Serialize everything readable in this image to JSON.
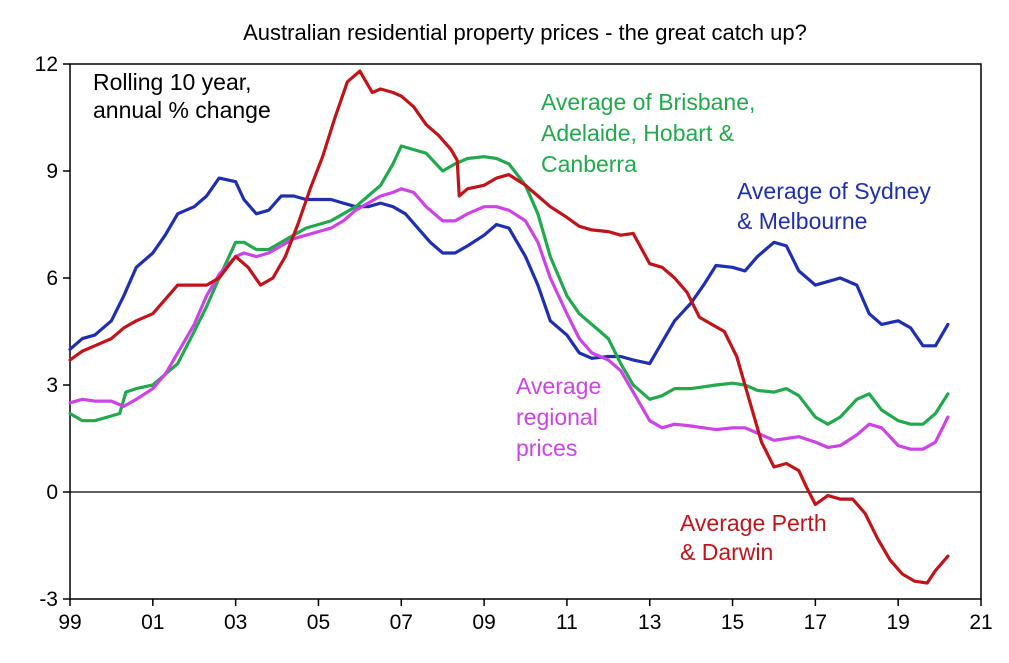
{
  "chart_data": {
    "type": "line",
    "title": "Australian residential property prices - the great catch up?",
    "xlabel": "",
    "ylabel": "",
    "xlim": [
      1999.0,
      2021.0
    ],
    "ylim": [
      -3,
      12
    ],
    "y_ticks": [
      -3,
      0,
      3,
      6,
      9,
      12
    ],
    "x_ticks": [
      {
        "value": 1999,
        "label": "99"
      },
      {
        "value": 2001,
        "label": "01"
      },
      {
        "value": 2003,
        "label": "03"
      },
      {
        "value": 2005,
        "label": "05"
      },
      {
        "value": 2007,
        "label": "07"
      },
      {
        "value": 2009,
        "label": "09"
      },
      {
        "value": 2011,
        "label": "11"
      },
      {
        "value": 2013,
        "label": "13"
      },
      {
        "value": 2015,
        "label": "15"
      },
      {
        "value": 2017,
        "label": "17"
      },
      {
        "value": 2019,
        "label": "19"
      },
      {
        "value": 2021,
        "label": "21"
      }
    ],
    "grid": false,
    "annotations": [
      {
        "lines": [
          "Rolling 10 year,",
          "annual % change"
        ],
        "color": "#000000"
      },
      {
        "lines": [
          "Average of Brisbane,",
          "Adelaide, Hobart &",
          "Canberra"
        ],
        "color": "#22a94d"
      },
      {
        "lines": [
          "Average of Sydney",
          "& Melbourne"
        ],
        "color": "#1f2fb0"
      },
      {
        "lines": [
          "Average",
          "regional",
          "prices"
        ],
        "color": "#cc44e6"
      },
      {
        "lines": [
          "Average Perth",
          "& Darwin"
        ],
        "color": "#c0141a"
      }
    ],
    "series": [
      {
        "color": "#1f2fb0",
        "x": [
          1999.0,
          1999.3,
          1999.6,
          2000.0,
          2000.3,
          2000.6,
          2001.0,
          2001.3,
          2001.6,
          2002.0,
          2002.3,
          2002.6,
          2003.0,
          2003.2,
          2003.5,
          2003.8,
          2004.1,
          2004.4,
          2004.7,
          2005.0,
          2005.3,
          2005.6,
          2005.9,
          2006.2,
          2006.5,
          2006.8,
          2007.1,
          2007.4,
          2007.7,
          2008.0,
          2008.3,
          2008.6,
          2009.0,
          2009.3,
          2009.6,
          2010.0,
          2010.3,
          2010.6,
          2011.0,
          2011.3,
          2011.6,
          2012.0,
          2012.3,
          2012.6,
          2013.0,
          2013.3,
          2013.6,
          2014.0,
          2014.3,
          2014.6,
          2015.0,
          2015.3,
          2015.6,
          2016.0,
          2016.3,
          2016.6,
          2017.0,
          2017.3,
          2017.6,
          2018.0,
          2018.3,
          2018.6,
          2019.0,
          2019.3,
          2019.6,
          2019.9,
          2020.2
        ],
        "y": [
          4.0,
          4.3,
          4.4,
          4.8,
          5.5,
          6.3,
          6.7,
          7.2,
          7.8,
          8.0,
          8.3,
          8.8,
          8.7,
          8.2,
          7.8,
          7.9,
          8.3,
          8.3,
          8.2,
          8.2,
          8.2,
          8.1,
          8.0,
          8.0,
          8.1,
          8.0,
          7.8,
          7.4,
          7.0,
          6.7,
          6.7,
          6.9,
          7.2,
          7.5,
          7.4,
          6.6,
          5.8,
          4.8,
          4.4,
          3.9,
          3.75,
          3.8,
          3.8,
          3.7,
          3.6,
          4.2,
          4.8,
          5.3,
          5.8,
          6.35,
          6.3,
          6.2,
          6.6,
          7.0,
          6.9,
          6.2,
          5.8,
          5.9,
          6.0,
          5.8,
          5.0,
          4.7,
          4.8,
          4.6,
          4.1,
          4.1,
          4.7
        ]
      },
      {
        "color": "#22a94d",
        "x": [
          1999.0,
          1999.3,
          1999.6,
          1999.9,
          2000.2,
          2000.35,
          2000.6,
          2001.0,
          2001.3,
          2001.6,
          2002.0,
          2002.3,
          2002.6,
          2003.0,
          2003.2,
          2003.5,
          2003.8,
          2004.1,
          2004.4,
          2004.7,
          2005.0,
          2005.3,
          2005.6,
          2005.9,
          2006.2,
          2006.5,
          2006.8,
          2007.0,
          2007.3,
          2007.6,
          2008.0,
          2008.3,
          2008.6,
          2009.0,
          2009.3,
          2009.6,
          2010.0,
          2010.3,
          2010.6,
          2011.0,
          2011.3,
          2011.6,
          2012.0,
          2012.3,
          2012.6,
          2013.0,
          2013.3,
          2013.6,
          2014.0,
          2014.3,
          2014.6,
          2015.0,
          2015.3,
          2015.6,
          2016.0,
          2016.3,
          2016.6,
          2017.0,
          2017.3,
          2017.6,
          2018.0,
          2018.3,
          2018.6,
          2019.0,
          2019.3,
          2019.6,
          2019.9,
          2020.2
        ],
        "y": [
          2.2,
          2.0,
          2.0,
          2.1,
          2.2,
          2.8,
          2.9,
          3.0,
          3.3,
          3.6,
          4.5,
          5.2,
          6.0,
          7.0,
          7.0,
          6.8,
          6.8,
          7.0,
          7.2,
          7.4,
          7.5,
          7.6,
          7.8,
          8.0,
          8.3,
          8.6,
          9.2,
          9.7,
          9.6,
          9.5,
          9.0,
          9.2,
          9.35,
          9.4,
          9.35,
          9.2,
          8.6,
          7.8,
          6.6,
          5.5,
          5.0,
          4.7,
          4.3,
          3.6,
          3.0,
          2.6,
          2.7,
          2.9,
          2.9,
          2.95,
          3.0,
          3.05,
          3.0,
          2.85,
          2.8,
          2.9,
          2.7,
          2.1,
          1.9,
          2.1,
          2.6,
          2.75,
          2.3,
          2.0,
          1.9,
          1.9,
          2.2,
          2.75
        ]
      },
      {
        "color": "#cc44e6",
        "x": [
          1999.0,
          1999.3,
          1999.6,
          2000.0,
          2000.3,
          2000.6,
          2001.0,
          2001.3,
          2001.6,
          2002.0,
          2002.3,
          2002.6,
          2003.0,
          2003.2,
          2003.5,
          2003.8,
          2004.1,
          2004.4,
          2004.7,
          2005.0,
          2005.3,
          2005.6,
          2005.9,
          2006.2,
          2006.5,
          2006.8,
          2007.0,
          2007.3,
          2007.6,
          2008.0,
          2008.3,
          2008.6,
          2009.0,
          2009.3,
          2009.6,
          2010.0,
          2010.3,
          2010.6,
          2011.0,
          2011.3,
          2011.6,
          2012.0,
          2012.3,
          2012.6,
          2013.0,
          2013.3,
          2013.6,
          2014.0,
          2014.3,
          2014.6,
          2015.0,
          2015.3,
          2015.6,
          2016.0,
          2016.3,
          2016.6,
          2017.0,
          2017.3,
          2017.6,
          2018.0,
          2018.3,
          2018.6,
          2019.0,
          2019.3,
          2019.6,
          2019.9,
          2020.2
        ],
        "y": [
          2.5,
          2.6,
          2.55,
          2.55,
          2.4,
          2.6,
          2.9,
          3.3,
          3.9,
          4.7,
          5.5,
          6.1,
          6.6,
          6.7,
          6.6,
          6.7,
          6.9,
          7.1,
          7.2,
          7.3,
          7.4,
          7.6,
          7.9,
          8.1,
          8.3,
          8.4,
          8.5,
          8.4,
          8.0,
          7.6,
          7.6,
          7.8,
          8.0,
          8.0,
          7.9,
          7.6,
          7.0,
          6.0,
          5.0,
          4.3,
          3.9,
          3.7,
          3.4,
          2.8,
          2.0,
          1.8,
          1.9,
          1.85,
          1.8,
          1.75,
          1.8,
          1.8,
          1.65,
          1.45,
          1.5,
          1.55,
          1.4,
          1.25,
          1.3,
          1.6,
          1.9,
          1.8,
          1.3,
          1.2,
          1.2,
          1.4,
          2.1
        ]
      },
      {
        "color": "#c0141a",
        "x": [
          1999.0,
          1999.3,
          1999.6,
          2000.0,
          2000.3,
          2000.6,
          2001.0,
          2001.3,
          2001.6,
          2002.0,
          2002.3,
          2002.6,
          2003.0,
          2003.3,
          2003.6,
          2003.9,
          2004.2,
          2004.5,
          2004.8,
          2005.1,
          2005.4,
          2005.7,
          2006.0,
          2006.1,
          2006.3,
          2006.5,
          2006.8,
          2007.0,
          2007.3,
          2007.6,
          2007.9,
          2008.2,
          2008.35,
          2008.4,
          2008.6,
          2009.0,
          2009.3,
          2009.6,
          2010.0,
          2010.3,
          2010.6,
          2011.0,
          2011.3,
          2011.6,
          2012.0,
          2012.3,
          2012.6,
          2013.0,
          2013.3,
          2013.6,
          2013.9,
          2014.2,
          2014.5,
          2014.8,
          2015.1,
          2015.4,
          2015.7,
          2016.0,
          2016.3,
          2016.6,
          2016.8,
          2017.0,
          2017.3,
          2017.6,
          2017.9,
          2018.2,
          2018.5,
          2018.8,
          2019.1,
          2019.4,
          2019.7,
          2019.9,
          2020.2
        ],
        "y": [
          3.7,
          3.95,
          4.1,
          4.3,
          4.6,
          4.8,
          5.0,
          5.4,
          5.8,
          5.8,
          5.8,
          6.0,
          6.6,
          6.3,
          5.8,
          6.0,
          6.6,
          7.5,
          8.5,
          9.4,
          10.5,
          11.5,
          11.8,
          11.6,
          11.2,
          11.3,
          11.2,
          11.1,
          10.8,
          10.3,
          10.0,
          9.6,
          9.3,
          8.3,
          8.5,
          8.6,
          8.8,
          8.9,
          8.6,
          8.3,
          8.0,
          7.7,
          7.45,
          7.35,
          7.3,
          7.2,
          7.25,
          6.4,
          6.3,
          6.0,
          5.6,
          4.9,
          4.7,
          4.5,
          3.8,
          2.6,
          1.4,
          0.7,
          0.8,
          0.6,
          0.1,
          -0.35,
          -0.1,
          -0.2,
          -0.2,
          -0.6,
          -1.3,
          -1.9,
          -2.3,
          -2.5,
          -2.55,
          -2.2,
          -1.8
        ]
      }
    ]
  }
}
